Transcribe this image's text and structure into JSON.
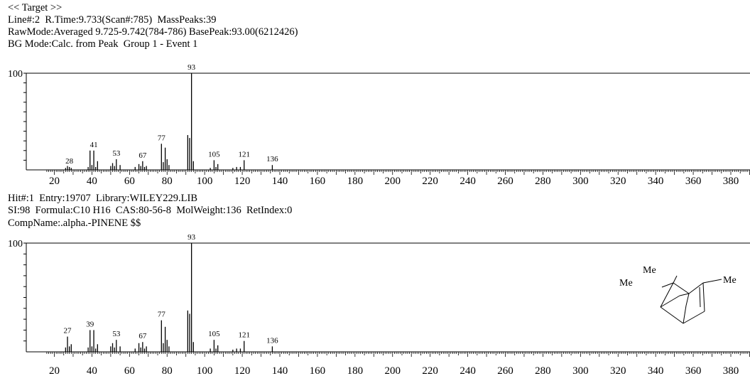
{
  "header": {
    "title": "<< Target >>",
    "line2": "Line#:2  R.Time:9.733(Scan#:785)  MassPeaks:39",
    "line3": "RawMode:Averaged 9.725-9.742(784-786) BasePeak:93.00(6212426)",
    "line4": "BG Mode:Calc. from Peak  Group 1 - Event 1"
  },
  "hit": {
    "line1": "Hit#:1  Entry:19707  Library:WILEY229.LIB",
    "line2": "SI:98  Formula:C10 H16  CAS:80-56-8  MolWeight:136  RetIndex:0",
    "line3": "CompName:.alpha.-PINENE $$"
  },
  "structure": {
    "labels": [
      "Me",
      "Me",
      "Me"
    ]
  },
  "chart_data": [
    {
      "type": "bar",
      "subtype": "mass-spectrum",
      "name": "target",
      "xlim": [
        20,
        400
      ],
      "ylim": [
        0,
        100
      ],
      "x_ticks": [
        20,
        40,
        60,
        80,
        100,
        120,
        140,
        160,
        180,
        200,
        220,
        240,
        260,
        280,
        300,
        320,
        340,
        360,
        380
      ],
      "y_tick_label": "100",
      "peaks": [
        {
          "mz": 26,
          "i": 2
        },
        {
          "mz": 27,
          "i": 4
        },
        {
          "mz": 28,
          "i": 3
        },
        {
          "mz": 29,
          "i": 2
        },
        {
          "mz": 38,
          "i": 3
        },
        {
          "mz": 39,
          "i": 20
        },
        {
          "mz": 40,
          "i": 5
        },
        {
          "mz": 41,
          "i": 20
        },
        {
          "mz": 42,
          "i": 3
        },
        {
          "mz": 43,
          "i": 9
        },
        {
          "mz": 50,
          "i": 4
        },
        {
          "mz": 51,
          "i": 7
        },
        {
          "mz": 52,
          "i": 4
        },
        {
          "mz": 53,
          "i": 11
        },
        {
          "mz": 55,
          "i": 5
        },
        {
          "mz": 63,
          "i": 3
        },
        {
          "mz": 65,
          "i": 6
        },
        {
          "mz": 66,
          "i": 4
        },
        {
          "mz": 67,
          "i": 9
        },
        {
          "mz": 68,
          "i": 3
        },
        {
          "mz": 69,
          "i": 4
        },
        {
          "mz": 77,
          "i": 27
        },
        {
          "mz": 78,
          "i": 8
        },
        {
          "mz": 79,
          "i": 23
        },
        {
          "mz": 80,
          "i": 11
        },
        {
          "mz": 81,
          "i": 5
        },
        {
          "mz": 91,
          "i": 36
        },
        {
          "mz": 92,
          "i": 33
        },
        {
          "mz": 93,
          "i": 100
        },
        {
          "mz": 94,
          "i": 9
        },
        {
          "mz": 103,
          "i": 2
        },
        {
          "mz": 105,
          "i": 10
        },
        {
          "mz": 106,
          "i": 3
        },
        {
          "mz": 107,
          "i": 6
        },
        {
          "mz": 115,
          "i": 2
        },
        {
          "mz": 117,
          "i": 3
        },
        {
          "mz": 119,
          "i": 3
        },
        {
          "mz": 121,
          "i": 10
        },
        {
          "mz": 136,
          "i": 5
        }
      ],
      "peak_labels": [
        28,
        41,
        53,
        67,
        77,
        93,
        105,
        121,
        136
      ]
    },
    {
      "type": "bar",
      "subtype": "mass-spectrum",
      "name": "library",
      "xlim": [
        20,
        400
      ],
      "ylim": [
        0,
        100
      ],
      "x_ticks": [
        20,
        40,
        60,
        80,
        100,
        120,
        140,
        160,
        180,
        200,
        220,
        240,
        260,
        280,
        300,
        320,
        340,
        360,
        380
      ],
      "y_tick_label": "100",
      "peaks": [
        {
          "mz": 26,
          "i": 4
        },
        {
          "mz": 27,
          "i": 14
        },
        {
          "mz": 28,
          "i": 5
        },
        {
          "mz": 29,
          "i": 7
        },
        {
          "mz": 38,
          "i": 4
        },
        {
          "mz": 39,
          "i": 20
        },
        {
          "mz": 40,
          "i": 5
        },
        {
          "mz": 41,
          "i": 20
        },
        {
          "mz": 42,
          "i": 3
        },
        {
          "mz": 43,
          "i": 7
        },
        {
          "mz": 50,
          "i": 5
        },
        {
          "mz": 51,
          "i": 8
        },
        {
          "mz": 52,
          "i": 4
        },
        {
          "mz": 53,
          "i": 11
        },
        {
          "mz": 55,
          "i": 5
        },
        {
          "mz": 63,
          "i": 3
        },
        {
          "mz": 65,
          "i": 8
        },
        {
          "mz": 66,
          "i": 4
        },
        {
          "mz": 67,
          "i": 9
        },
        {
          "mz": 68,
          "i": 3
        },
        {
          "mz": 69,
          "i": 5
        },
        {
          "mz": 77,
          "i": 29
        },
        {
          "mz": 78,
          "i": 8
        },
        {
          "mz": 79,
          "i": 23
        },
        {
          "mz": 80,
          "i": 11
        },
        {
          "mz": 81,
          "i": 5
        },
        {
          "mz": 91,
          "i": 38
        },
        {
          "mz": 92,
          "i": 35
        },
        {
          "mz": 93,
          "i": 100
        },
        {
          "mz": 94,
          "i": 9
        },
        {
          "mz": 103,
          "i": 3
        },
        {
          "mz": 105,
          "i": 11
        },
        {
          "mz": 106,
          "i": 3
        },
        {
          "mz": 107,
          "i": 6
        },
        {
          "mz": 115,
          "i": 2
        },
        {
          "mz": 117,
          "i": 3
        },
        {
          "mz": 119,
          "i": 3
        },
        {
          "mz": 121,
          "i": 10
        },
        {
          "mz": 136,
          "i": 5
        }
      ],
      "peak_labels": [
        27,
        39,
        53,
        67,
        77,
        93,
        105,
        121,
        136
      ]
    }
  ]
}
